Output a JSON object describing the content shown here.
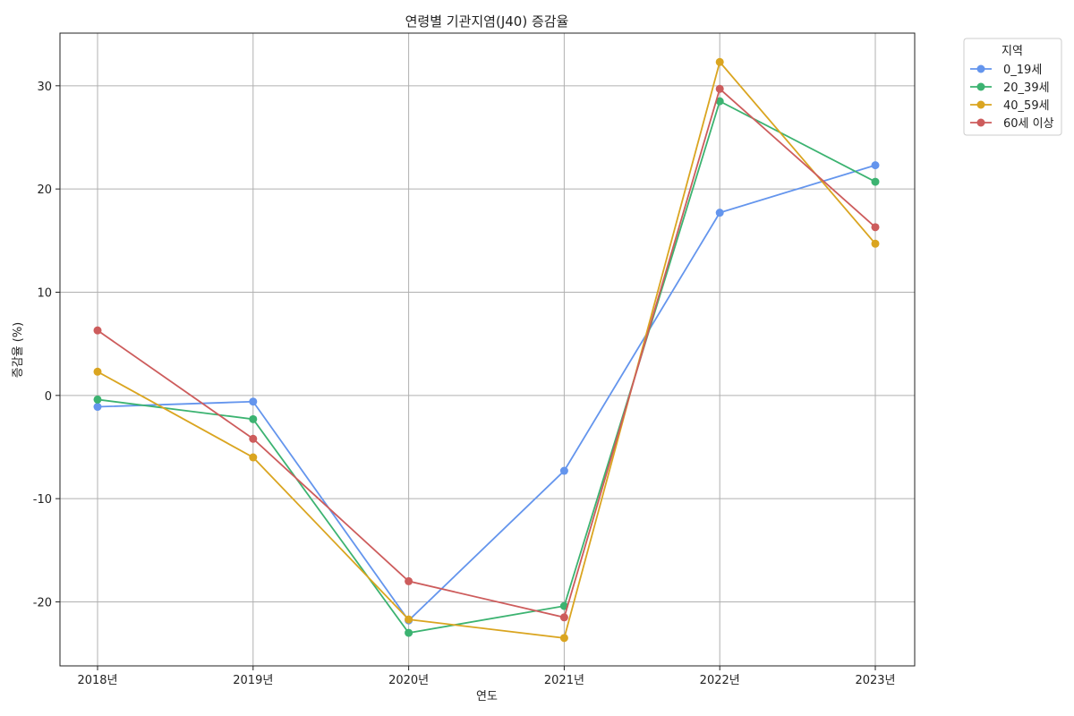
{
  "chart_data": {
    "type": "line",
    "title": "연령별 기관지염(J40) 증감율",
    "xlabel": "연도",
    "ylabel": "증감율 (%)",
    "categories": [
      "2018년",
      "2019년",
      "2020년",
      "2021년",
      "2022년",
      "2023년"
    ],
    "ylim": [
      -26.2,
      35.1
    ],
    "yticks": [
      -20,
      -10,
      0,
      10,
      20,
      30
    ],
    "ytick_labels": [
      "-20",
      "-10",
      "0",
      "10",
      "20",
      "30"
    ],
    "grid": true,
    "legend_title": "지역",
    "legend_position": "outside-top-right",
    "series": [
      {
        "name": "0_19세",
        "color": "#6495ED",
        "values": [
          -1.1,
          -0.6,
          -21.8,
          -7.3,
          17.7,
          22.3
        ]
      },
      {
        "name": "20_39세",
        "color": "#3CB371",
        "values": [
          -0.4,
          -2.3,
          -23.0,
          -20.4,
          28.5,
          20.7
        ]
      },
      {
        "name": "40_59세",
        "color": "#DAA520",
        "values": [
          2.3,
          -6.0,
          -21.7,
          -23.5,
          32.3,
          14.7
        ]
      },
      {
        "name": "60세 이상",
        "color": "#CD5C5C",
        "values": [
          6.3,
          -4.2,
          -18.0,
          -21.5,
          29.7,
          16.3
        ]
      }
    ]
  }
}
